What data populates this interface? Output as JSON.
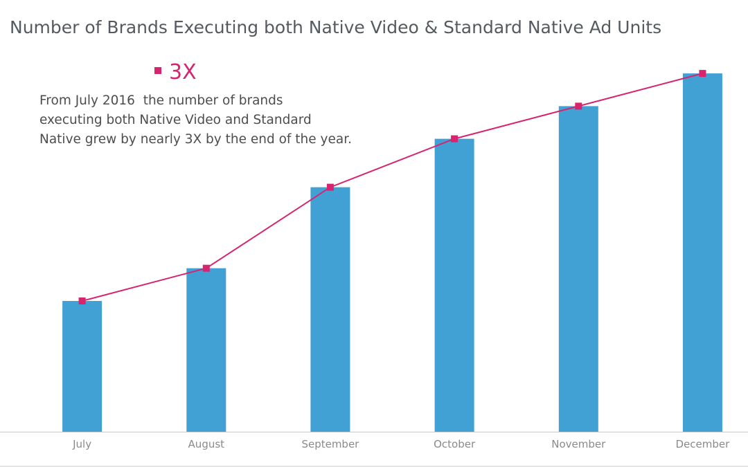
{
  "chart_data": {
    "type": "bar",
    "title": "Number of Brands Executing both Native Video & Standard Native Ad Units",
    "categories": [
      "July",
      "August",
      "September",
      "October",
      "November",
      "December"
    ],
    "series": [
      {
        "type": "bar",
        "values": [
          1.0,
          1.25,
          1.87,
          2.24,
          2.49,
          2.74
        ],
        "color": "#42a1d4"
      },
      {
        "type": "line",
        "name": "3X",
        "values": [
          1.0,
          1.25,
          1.87,
          2.24,
          2.49,
          2.74
        ],
        "color": "#d6246f",
        "marker": "square"
      }
    ],
    "legend": {
      "placement": "top-left",
      "entries": [
        "3X"
      ]
    },
    "annotation": [
      "From July 2016  the number of brands",
      "executing both Native Video and Standard",
      "Native grew by nearly 3X by the end of the year."
    ],
    "xlabel": "",
    "ylabel": "",
    "ylim": [
      0,
      2.82
    ],
    "grid": false,
    "y_axis_visible": false
  }
}
